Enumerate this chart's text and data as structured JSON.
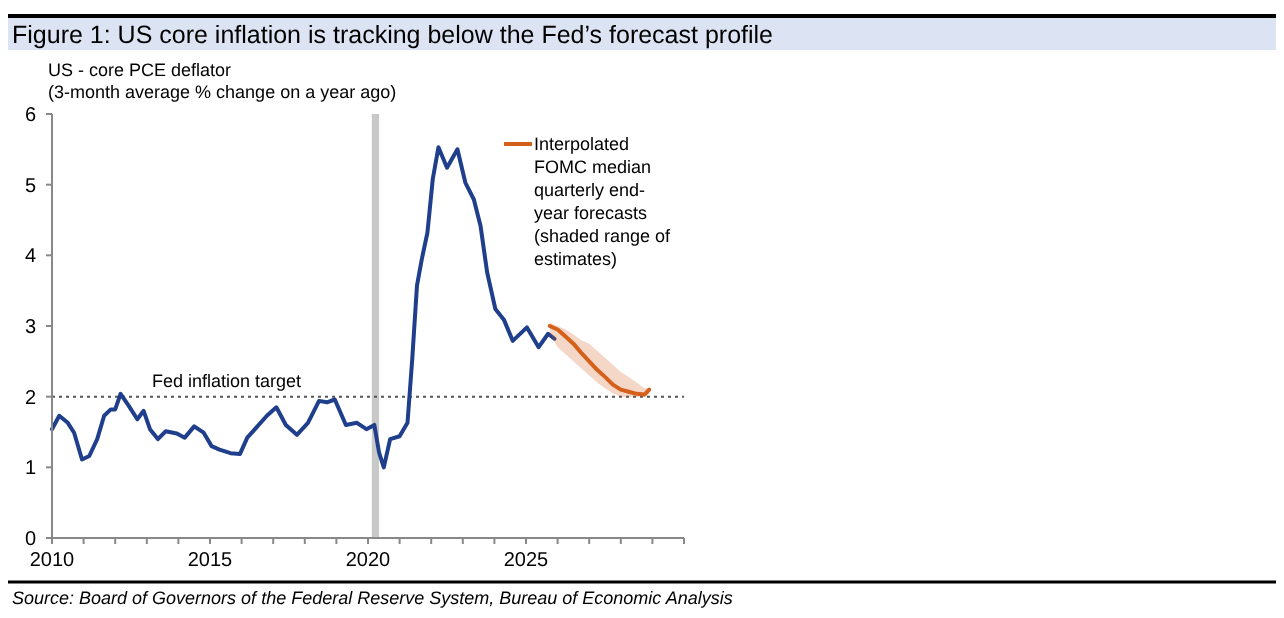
{
  "chart_data": {
    "type": "line",
    "title": "Figure 1: US core inflation is tracking below the Fed’s forecast profile",
    "subtitle": "US - core PCE deflator",
    "ylabel": "(3-month average % change on a year ago)",
    "annotations": [
      "Source: Board of Governors of the Federal Reserve System, Bureau of Economic Analysis"
    ],
    "series": [
      {
        "color": "#1f3f8c",
        "x": [
          2010.0,
          2010.23,
          2010.5,
          2010.7,
          2010.95,
          2011.18,
          2011.43,
          2011.65,
          2011.86,
          2012.0,
          2012.17,
          2012.43,
          2012.7,
          2012.9,
          2013.1,
          2013.35,
          2013.6,
          2013.95,
          2014.2,
          2014.5,
          2014.8,
          2015.05,
          2015.3,
          2015.65,
          2015.95,
          2016.18,
          2016.5,
          2016.8,
          2017.1,
          2017.4,
          2017.75,
          2018.1,
          2018.45,
          2018.7,
          2018.95,
          2019.3,
          2019.65,
          2019.95,
          2020.2,
          2020.35,
          2020.5,
          2020.7,
          2021.0,
          2021.25,
          2021.4,
          2021.55,
          2021.7,
          2021.88,
          2022.05,
          2022.23,
          2022.5,
          2022.83,
          2023.08,
          2023.35,
          2023.56,
          2023.77,
          2024.03,
          2024.3,
          2024.58,
          2025.03,
          2025.4,
          2025.7,
          2025.9
        ],
        "values": [
          1.54,
          1.73,
          1.63,
          1.49,
          1.11,
          1.16,
          1.4,
          1.73,
          1.82,
          1.82,
          2.04,
          1.87,
          1.68,
          1.8,
          1.54,
          1.4,
          1.51,
          1.48,
          1.42,
          1.58,
          1.49,
          1.3,
          1.25,
          1.2,
          1.19,
          1.42,
          1.58,
          1.73,
          1.85,
          1.6,
          1.46,
          1.63,
          1.94,
          1.92,
          1.96,
          1.6,
          1.63,
          1.54,
          1.6,
          1.21,
          1.0,
          1.4,
          1.44,
          1.63,
          2.53,
          3.57,
          3.94,
          4.32,
          5.08,
          5.53,
          5.24,
          5.5,
          5.03,
          4.79,
          4.42,
          3.76,
          3.24,
          3.09,
          2.79,
          2.98,
          2.7,
          2.89,
          2.82
        ]
      },
      {
        "name": "Interpolated FOMC median quarterly end-year forecasts (shaded range of estimates)",
        "color": "#d4601c",
        "x": [
          2025.75,
          2026.0,
          2026.25,
          2026.5,
          2026.75,
          2027.0,
          2027.25,
          2027.5,
          2027.75,
          2028.0,
          2028.25,
          2028.5,
          2028.75,
          2028.9
        ],
        "values": [
          3.0,
          2.95,
          2.85,
          2.75,
          2.62,
          2.5,
          2.38,
          2.28,
          2.17,
          2.1,
          2.07,
          2.04,
          2.03,
          2.1
        ],
        "lower": [
          2.9,
          2.7,
          2.6,
          2.5,
          2.4,
          2.3,
          2.2,
          2.12,
          2.05,
          2.0,
          2.0,
          2.0,
          2.0,
          2.05
        ],
        "upper": [
          3.05,
          3.0,
          2.95,
          2.88,
          2.8,
          2.75,
          2.65,
          2.55,
          2.45,
          2.35,
          2.28,
          2.2,
          2.12,
          2.12
        ]
      }
    ],
    "xlim": [
      2010,
      2030
    ],
    "xticks": [
      2010,
      {
        "value": 2011,
        "label": null
      },
      {
        "value": 2012,
        "label": null
      },
      {
        "value": 2013,
        "label": null
      },
      {
        "value": 2014,
        "label": null
      },
      2015,
      {
        "value": 2016,
        "label": null
      },
      {
        "value": 2017,
        "label": null
      },
      {
        "value": 2018,
        "label": null
      },
      {
        "value": 2019,
        "label": null
      },
      2020,
      {
        "value": 2021,
        "label": null
      },
      {
        "value": 2022,
        "label": null
      },
      {
        "value": 2023,
        "label": null
      },
      {
        "value": 2024,
        "label": null
      },
      2025,
      {
        "value": 2026,
        "label": null
      },
      {
        "value": 2027,
        "label": null
      },
      {
        "value": 2028,
        "label": null
      },
      {
        "value": 2029,
        "label": null
      },
      {
        "value": 2030,
        "label": null
      }
    ],
    "ylim": [
      0,
      6
    ],
    "yticks": [
      0,
      1,
      2,
      3,
      4,
      5,
      6
    ],
    "ref_lines": [
      {
        "axis": "y",
        "value": 2,
        "label": "Fed inflation target",
        "color": "#555555",
        "line_style": "dotted"
      }
    ],
    "bands": [
      {
        "axis": "x",
        "from": 2020.12,
        "to": 2020.35,
        "color": "#c8c8c8"
      }
    ],
    "grid": false,
    "legend": "top right",
    "line_style": "solid",
    "marker": "none"
  }
}
